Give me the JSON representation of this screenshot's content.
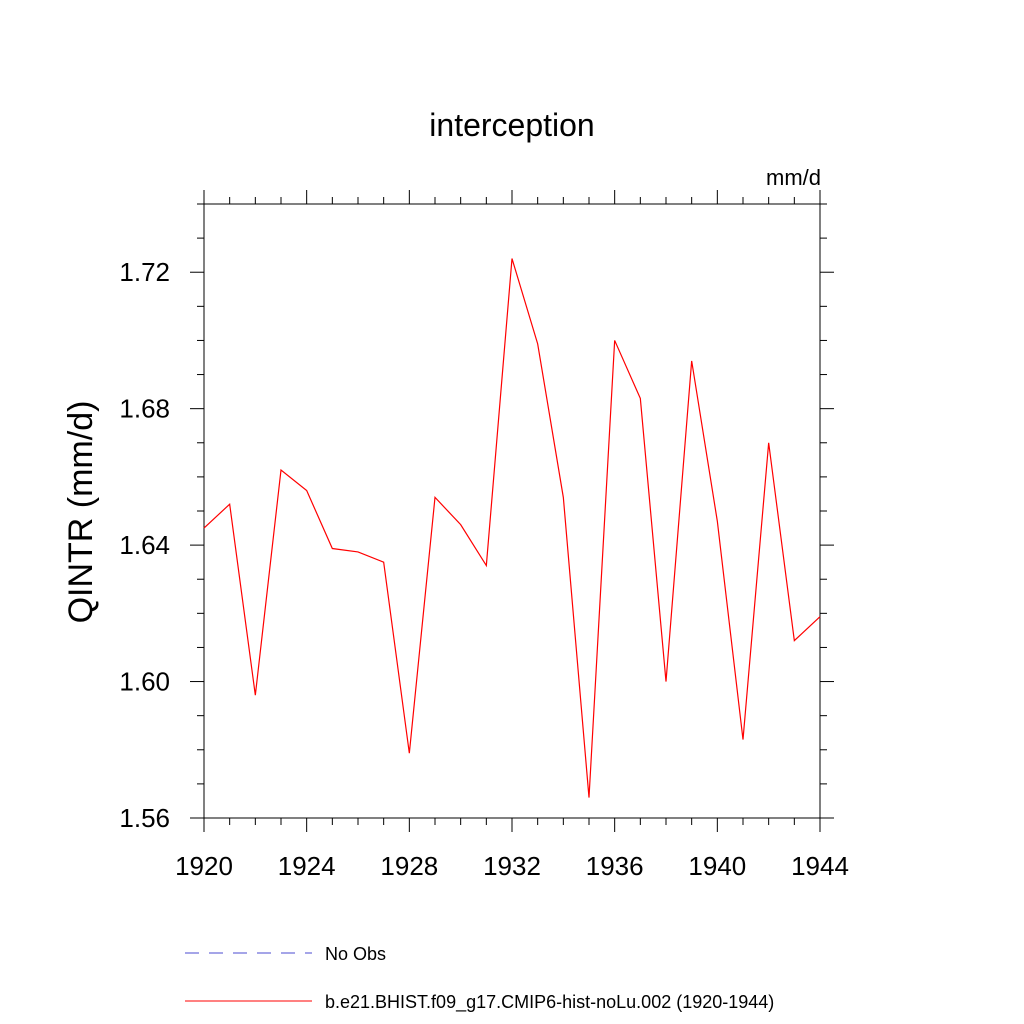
{
  "chart_data": {
    "type": "line",
    "title": "interception",
    "units": "mm/d",
    "ylabel": "QINTR  (mm/d)",
    "xlabel": "",
    "xlim": [
      1920,
      1944
    ],
    "ylim": [
      1.56,
      1.74
    ],
    "x_ticks": [
      1920,
      1924,
      1928,
      1932,
      1936,
      1940,
      1944
    ],
    "x_tick_labels": [
      "1920",
      "1924",
      "1928",
      "1932",
      "1936",
      "1940",
      "1944"
    ],
    "y_ticks": [
      1.56,
      1.6,
      1.64,
      1.68,
      1.72
    ],
    "y_tick_labels": [
      "1.56",
      "1.60",
      "1.64",
      "1.68",
      "1.72"
    ],
    "series": [
      {
        "name": "b.e21.BHIST.f09_g17.CMIP6-hist-noLu.002 (1920-1944)",
        "color": "#ff0000",
        "style": "solid",
        "x": [
          1920,
          1921,
          1922,
          1923,
          1924,
          1925,
          1926,
          1927,
          1928,
          1929,
          1930,
          1931,
          1932,
          1933,
          1934,
          1935,
          1936,
          1937,
          1938,
          1939,
          1940,
          1941,
          1942,
          1943,
          1944
        ],
        "y": [
          1.645,
          1.652,
          1.596,
          1.662,
          1.656,
          1.639,
          1.638,
          1.635,
          1.579,
          1.654,
          1.646,
          1.634,
          1.724,
          1.699,
          1.654,
          1.566,
          1.7,
          1.683,
          1.6,
          1.694,
          1.647,
          1.583,
          1.67,
          1.612,
          1.619
        ]
      }
    ],
    "legend": {
      "placement": "bottom",
      "entries": [
        {
          "label": "No Obs",
          "color": "#4b4bd0",
          "style": "dashed"
        },
        {
          "label": "b.e21.BHIST.f09_g17.CMIP6-hist-noLu.002 (1920-1944)",
          "color": "#ff0000",
          "style": "solid"
        }
      ]
    },
    "grid": false
  }
}
